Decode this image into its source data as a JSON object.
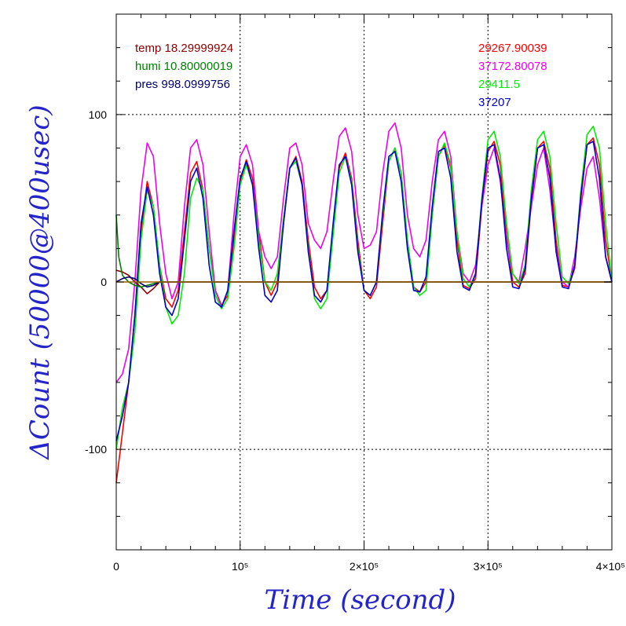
{
  "chart_data": {
    "type": "line",
    "title": "",
    "xlabel": "Time (second)",
    "ylabel": "ΔCount (50000@400usec)",
    "xlim": [
      0,
      400000
    ],
    "ylim": [
      -160,
      160
    ],
    "x_ticks": [
      {
        "value": 0,
        "label": "0"
      },
      {
        "value": 100000,
        "label": "10⁵"
      },
      {
        "value": 200000,
        "label": "2×10⁵"
      },
      {
        "value": 300000,
        "label": "3×10⁵"
      },
      {
        "value": 400000,
        "label": "4×10⁵"
      }
    ],
    "y_ticks": [
      {
        "value": -100,
        "label": "-100"
      },
      {
        "value": 0,
        "label": "0"
      },
      {
        "value": 100,
        "label": "100"
      }
    ],
    "grid": true,
    "legend": {
      "placement": "top",
      "left_entries": [
        {
          "text": "temp 18.29999924",
          "color": "#8b0000"
        },
        {
          "text": "humi 10.80000019",
          "color": "#008000"
        },
        {
          "text": "pres 998.0999756",
          "color": "#00006e"
        }
      ],
      "right_entries": [
        {
          "text": "29267.90039",
          "color": "#ff0000"
        },
        {
          "text": "37172.80078",
          "color": "#ee00ee"
        },
        {
          "text": "29411.5",
          "color": "#00ee00"
        },
        {
          "text": "37207",
          "color": "#0000cc"
        }
      ]
    },
    "series": [
      {
        "color": "#ff0000",
        "x": [
          0,
          5000,
          10000,
          15000,
          20000,
          25000,
          30000,
          35000,
          40000,
          45000,
          50000,
          55000,
          60000,
          65000,
          70000,
          75000,
          80000,
          85000,
          90000,
          95000,
          100000,
          105000,
          110000,
          115000,
          120000,
          125000,
          130000,
          135000,
          140000,
          145000,
          150000,
          155000,
          160000,
          165000,
          170000,
          175000,
          180000,
          185000,
          190000,
          195000,
          200000,
          205000,
          210000,
          215000,
          220000,
          225000,
          230000,
          235000,
          240000,
          245000,
          250000,
          255000,
          260000,
          265000,
          270000,
          275000,
          280000,
          285000,
          290000,
          295000,
          300000,
          305000,
          310000,
          315000,
          320000,
          325000,
          330000,
          335000,
          340000,
          345000,
          350000,
          355000,
          360000,
          365000,
          370000,
          375000,
          380000,
          385000,
          390000,
          395000,
          400000
        ],
        "y": [
          -120,
          -90,
          -60,
          -20,
          30,
          60,
          45,
          10,
          -10,
          -15,
          -5,
          30,
          65,
          72,
          55,
          20,
          -5,
          -14,
          -8,
          25,
          60,
          73,
          62,
          30,
          0,
          -8,
          0,
          35,
          68,
          75,
          60,
          25,
          -3,
          -10,
          -5,
          30,
          68,
          77,
          62,
          25,
          -5,
          -10,
          -3,
          35,
          72,
          80,
          65,
          25,
          -3,
          -6,
          0,
          40,
          75,
          82,
          68,
          25,
          -2,
          -4,
          2,
          45,
          78,
          84,
          70,
          28,
          0,
          -3,
          5,
          48,
          80,
          84,
          68,
          25,
          -2,
          -3,
          8,
          50,
          82,
          86,
          70,
          25,
          0
        ]
      },
      {
        "color": "#ee00ee",
        "x": [
          0,
          5000,
          10000,
          15000,
          20000,
          25000,
          30000,
          35000,
          40000,
          45000,
          50000,
          55000,
          60000,
          65000,
          70000,
          75000,
          80000,
          85000,
          90000,
          95000,
          100000,
          105000,
          110000,
          115000,
          120000,
          125000,
          130000,
          135000,
          140000,
          145000,
          150000,
          155000,
          160000,
          165000,
          170000,
          175000,
          180000,
          185000,
          190000,
          195000,
          200000,
          205000,
          210000,
          215000,
          220000,
          225000,
          230000,
          235000,
          240000,
          245000,
          250000,
          255000,
          260000,
          265000,
          270000,
          275000,
          280000,
          285000,
          290000,
          295000,
          300000,
          305000,
          310000,
          315000,
          320000,
          325000,
          330000,
          335000,
          340000,
          345000,
          350000,
          355000,
          360000,
          365000,
          370000,
          375000,
          380000,
          385000,
          390000,
          395000,
          400000
        ],
        "y": [
          -60,
          -55,
          -40,
          0,
          55,
          83,
          75,
          35,
          5,
          -10,
          0,
          45,
          80,
          85,
          70,
          30,
          -5,
          -15,
          -5,
          40,
          75,
          82,
          70,
          30,
          15,
          8,
          15,
          50,
          80,
          83,
          70,
          35,
          25,
          20,
          30,
          60,
          87,
          92,
          78,
          40,
          20,
          22,
          30,
          65,
          90,
          95,
          80,
          40,
          20,
          15,
          25,
          60,
          85,
          90,
          75,
          30,
          5,
          0,
          10,
          45,
          70,
          80,
          60,
          25,
          5,
          0,
          20,
          45,
          70,
          80,
          55,
          20,
          0,
          -3,
          15,
          45,
          68,
          75,
          50,
          15,
          0
        ]
      },
      {
        "color": "#00ee00",
        "x": [
          0,
          5000,
          10000,
          15000,
          20000,
          25000,
          30000,
          35000,
          40000,
          45000,
          50000,
          55000,
          60000,
          65000,
          70000,
          75000,
          80000,
          85000,
          90000,
          95000,
          100000,
          105000,
          110000,
          115000,
          120000,
          125000,
          130000,
          135000,
          140000,
          145000,
          150000,
          155000,
          160000,
          165000,
          170000,
          175000,
          180000,
          185000,
          190000,
          195000,
          200000,
          205000,
          210000,
          215000,
          220000,
          225000,
          230000,
          235000,
          240000,
          245000,
          250000,
          255000,
          260000,
          265000,
          270000,
          275000,
          280000,
          285000,
          290000,
          295000,
          300000,
          305000,
          310000,
          315000,
          320000,
          325000,
          330000,
          335000,
          340000,
          345000,
          350000,
          355000,
          360000,
          365000,
          370000,
          375000,
          380000,
          385000,
          390000,
          395000,
          400000
        ],
        "y": [
          -100,
          -75,
          -60,
          -30,
          25,
          55,
          45,
          10,
          -15,
          -25,
          -20,
          5,
          50,
          62,
          55,
          20,
          -8,
          -16,
          -10,
          20,
          58,
          70,
          58,
          25,
          0,
          -5,
          5,
          38,
          68,
          72,
          58,
          20,
          -10,
          -16,
          -10,
          28,
          65,
          75,
          60,
          20,
          -5,
          -8,
          0,
          40,
          72,
          80,
          65,
          25,
          -3,
          -8,
          -5,
          40,
          75,
          83,
          70,
          30,
          2,
          -3,
          5,
          50,
          85,
          90,
          75,
          35,
          5,
          -1,
          10,
          55,
          85,
          90,
          75,
          35,
          3,
          -1,
          10,
          55,
          88,
          93,
          80,
          35,
          0
        ]
      },
      {
        "color": "#0000cc",
        "x": [
          0,
          5000,
          10000,
          15000,
          20000,
          25000,
          30000,
          35000,
          40000,
          45000,
          50000,
          55000,
          60000,
          65000,
          70000,
          75000,
          80000,
          85000,
          90000,
          95000,
          100000,
          105000,
          110000,
          115000,
          120000,
          125000,
          130000,
          135000,
          140000,
          145000,
          150000,
          155000,
          160000,
          165000,
          170000,
          175000,
          180000,
          185000,
          190000,
          195000,
          200000,
          205000,
          210000,
          215000,
          220000,
          225000,
          230000,
          235000,
          240000,
          245000,
          250000,
          255000,
          260000,
          265000,
          270000,
          275000,
          280000,
          285000,
          290000,
          295000,
          300000,
          305000,
          310000,
          315000,
          320000,
          325000,
          330000,
          335000,
          340000,
          345000,
          350000,
          355000,
          360000,
          365000,
          370000,
          375000,
          380000,
          385000,
          390000,
          395000,
          400000
        ],
        "y": [
          -95,
          -80,
          -60,
          -20,
          35,
          57,
          40,
          5,
          -15,
          -20,
          -10,
          25,
          60,
          68,
          50,
          10,
          -12,
          -15,
          -5,
          30,
          62,
          72,
          58,
          20,
          -8,
          -12,
          -5,
          35,
          68,
          74,
          58,
          18,
          -8,
          -12,
          -5,
          35,
          70,
          75,
          58,
          18,
          -5,
          -8,
          0,
          42,
          75,
          78,
          60,
          20,
          -5,
          -6,
          3,
          45,
          78,
          80,
          62,
          18,
          -3,
          -5,
          5,
          48,
          80,
          82,
          62,
          20,
          -3,
          -4,
          8,
          50,
          80,
          82,
          62,
          18,
          -3,
          -4,
          10,
          52,
          82,
          84,
          62,
          15,
          0
        ]
      },
      {
        "color": "#8b0000",
        "x": [
          0,
          5000,
          10000,
          15000,
          20000,
          25000,
          30000,
          35000,
          40000,
          400000
        ],
        "y": [
          7,
          6,
          4,
          0,
          -3,
          -7,
          -4,
          0,
          0,
          0
        ]
      },
      {
        "color": "#008000",
        "x": [
          0,
          2000,
          5000,
          10000,
          15000,
          20000,
          25000,
          30000,
          35000,
          40000,
          400000
        ],
        "y": [
          40,
          15,
          4,
          0,
          -2,
          -3,
          -2,
          -1,
          0,
          0,
          0
        ]
      },
      {
        "color": "#00006e",
        "x": [
          0,
          5000,
          10000,
          15000,
          20000,
          25000,
          30000,
          35000,
          40000,
          400000
        ],
        "y": [
          0,
          2,
          3,
          2,
          -1,
          -3,
          -2,
          0,
          0,
          0
        ]
      },
      {
        "color": "#a06400",
        "x": [
          0,
          400000
        ],
        "y": [
          0,
          0
        ]
      }
    ]
  }
}
